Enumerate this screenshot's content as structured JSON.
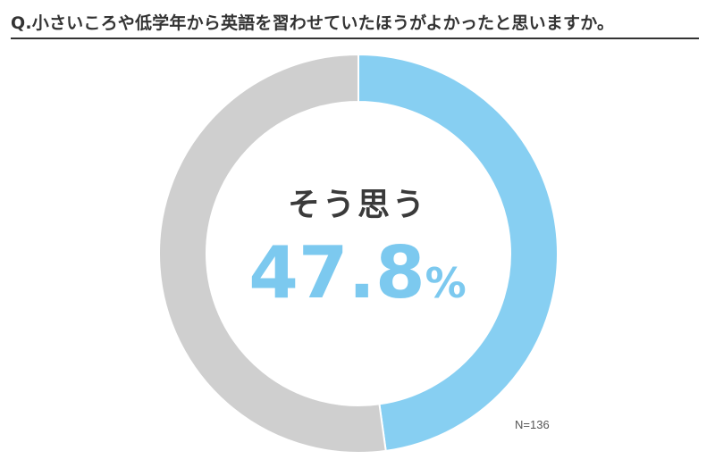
{
  "title": "Q.小さいころや低学年から英語を習わせていたほうがよかったと思いますか。",
  "sample_size": "N=136",
  "center": {
    "label": "そう思う",
    "value": "47.8",
    "unit": "%"
  },
  "colors": {
    "highlight": "#87cff2",
    "rest": "#cfcfcf",
    "value_text": "#7cc9ef"
  },
  "chart_data": {
    "type": "pie",
    "style": "donut",
    "title": "Q.小さいころや低学年から英語を習わせていたほうがよかったと思いますか。",
    "slices": [
      {
        "label": "そう思う",
        "value": 47.8,
        "color": "#87cff2"
      },
      {
        "label": "",
        "value": 52.2,
        "color": "#cfcfcf"
      }
    ],
    "start": "top",
    "direction": "clockwise"
  }
}
